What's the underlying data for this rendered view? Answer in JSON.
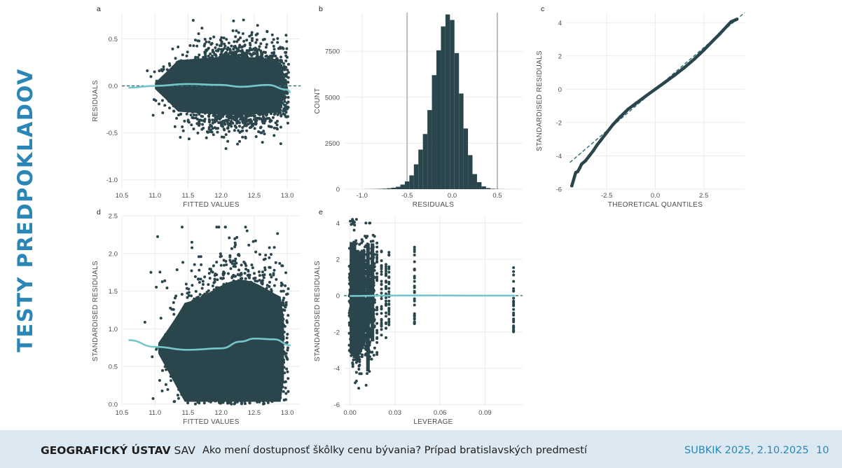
{
  "slide": {
    "title": "TESTY PREDPOKLADOV"
  },
  "footer": {
    "org_bold": "GEOGRAFICKÝ ÚSTAV",
    "org_suffix": "SAV",
    "talk": "Ako mení dostupnosť škôlky cenu bývania? Prípad bratislavských predmestí",
    "event": "SUBKIK 2025, 2.10.2025",
    "page": "10"
  },
  "colors": {
    "points": "#2b454d",
    "smooth": "#76c7cc",
    "bars": "#2b454d",
    "refline": "#2b6c74",
    "grid": "#ebebeb",
    "vline": "#bdbdbd",
    "accent": "#2a86b6"
  },
  "chart_data": [
    {
      "id": "a",
      "type": "scatter",
      "panel_label": "a",
      "xlabel": "FITTED VALUES",
      "ylabel": "RESIDUALS",
      "xlim": [
        10.5,
        13.2
      ],
      "ylim": [
        -1.1,
        0.78
      ],
      "xticks": [
        "10.5",
        "11.0",
        "11.5",
        "12.0",
        "12.5",
        "13.0"
      ],
      "yticks": [
        "-1.0",
        "-0.5",
        "0.0",
        "0.5"
      ],
      "reference_line": {
        "type": "horizontal",
        "y": 0,
        "style": "dashed"
      },
      "smooth": {
        "x": [
          10.6,
          11.0,
          11.5,
          12.0,
          12.3,
          12.7,
          13.0,
          13.05
        ],
        "y": [
          -0.02,
          0.0,
          0.02,
          0.01,
          -0.01,
          0.01,
          -0.04,
          -0.07
        ]
      },
      "point_cloud": {
        "x_range": [
          10.6,
          13.05
        ],
        "center_x": 12.25,
        "approx_y_range": [
          -1.05,
          0.77
        ],
        "n_points_approx": 60000
      }
    },
    {
      "id": "b",
      "type": "bar",
      "panel_label": "b",
      "xlabel": "RESIDUALS",
      "ylabel": "COUNT",
      "xlim": [
        -1.2,
        0.78
      ],
      "ylim": [
        0,
        9600
      ],
      "xticks": [
        "-1.0",
        "-0.5",
        "0.0",
        "0.5"
      ],
      "yticks": [
        "0",
        "2500",
        "5000",
        "7500"
      ],
      "vlines": [
        -0.5,
        0.5
      ],
      "bin_width": 0.05,
      "bins_center": [
        -0.95,
        -0.9,
        -0.85,
        -0.8,
        -0.75,
        -0.7,
        -0.65,
        -0.6,
        -0.55,
        -0.5,
        -0.45,
        -0.4,
        -0.35,
        -0.3,
        -0.25,
        -0.2,
        -0.15,
        -0.1,
        -0.05,
        0.0,
        0.05,
        0.1,
        0.15,
        0.2,
        0.25,
        0.3,
        0.35,
        0.4,
        0.45,
        0.5,
        0.55,
        0.6,
        0.65
      ],
      "values": [
        5,
        8,
        12,
        20,
        30,
        50,
        80,
        130,
        250,
        420,
        750,
        1350,
        2150,
        3000,
        4300,
        6200,
        7550,
        8850,
        9500,
        9200,
        7400,
        5200,
        3300,
        1850,
        820,
        380,
        150,
        60,
        25,
        10,
        5,
        3,
        2
      ]
    },
    {
      "id": "c",
      "type": "scatter",
      "panel_label": "c",
      "xlabel": "THEORETICAL QUANTILES",
      "ylabel": "STANDARDISED RESIDUALS",
      "xlim": [
        -4.6,
        4.6
      ],
      "ylim": [
        -6.0,
        4.6
      ],
      "xticks": [
        "-2.5",
        "0.0",
        "2.5"
      ],
      "yticks": [
        "-6",
        "-4",
        "-2",
        "0",
        "2",
        "4"
      ],
      "reference_line": {
        "type": "diagonal",
        "slope": 1,
        "intercept": 0,
        "style": "dashed"
      },
      "x": [
        -4.3,
        -4.1,
        -4.0,
        -3.9,
        -3.8,
        -3.6,
        -3.4,
        -3.2,
        -3.0,
        -2.8,
        -2.5,
        -2.2,
        -1.8,
        -1.4,
        -1.0,
        -0.5,
        0.0,
        0.5,
        1.0,
        1.5,
        2.0,
        2.5,
        3.0,
        3.3,
        3.5,
        3.7,
        3.9,
        4.0,
        4.1,
        4.2
      ],
      "y": [
        -5.8,
        -5.0,
        -4.95,
        -4.75,
        -4.5,
        -4.3,
        -4.0,
        -3.7,
        -3.35,
        -3.05,
        -2.6,
        -2.15,
        -1.65,
        -1.2,
        -0.85,
        -0.42,
        0.0,
        0.42,
        0.85,
        1.3,
        1.8,
        2.35,
        2.95,
        3.3,
        3.55,
        3.8,
        4.05,
        4.1,
        4.15,
        4.2
      ]
    },
    {
      "id": "d",
      "type": "scatter",
      "panel_label": "d",
      "xlabel": "FITTED VALUES",
      "ylabel": "STANDARDISED RESIDUALS",
      "xlim": [
        10.5,
        13.2
      ],
      "ylim": [
        -0.03,
        2.5
      ],
      "xticks": [
        "10.5",
        "11.0",
        "11.5",
        "12.0",
        "12.5",
        "13.0"
      ],
      "yticks": [
        "0.0",
        "0.5",
        "1.0",
        "1.5",
        "2.0",
        "2.5"
      ],
      "smooth": {
        "x": [
          10.6,
          11.0,
          11.5,
          12.0,
          12.3,
          12.5,
          12.8,
          13.05
        ],
        "y": [
          0.85,
          0.76,
          0.72,
          0.74,
          0.83,
          0.87,
          0.86,
          0.78
        ]
      },
      "point_cloud": {
        "x_range": [
          10.6,
          13.05
        ],
        "center_x": 12.25,
        "approx_y_range": [
          0.0,
          2.4
        ],
        "n_points_approx": 60000
      }
    },
    {
      "id": "e",
      "type": "scatter",
      "panel_label": "e",
      "xlabel": "LEVERAGE",
      "ylabel": "STANDARDISED RESIDUALS",
      "xlim": [
        -0.004,
        0.115
      ],
      "ylim": [
        -6.1,
        4.4
      ],
      "xticks": [
        "0.00",
        "0.03",
        "0.06",
        "0.09"
      ],
      "yticks": [
        "-6",
        "-4",
        "-2",
        "0",
        "2",
        "4"
      ],
      "reference_line": {
        "type": "horizontal",
        "y": 0,
        "style": "dashed"
      },
      "smooth": {
        "x": [
          0.0,
          0.02,
          0.05,
          0.08,
          0.11
        ],
        "y": [
          -0.02,
          0.0,
          0.01,
          0.0,
          0.0
        ]
      },
      "columns": [
        {
          "x": 0.001,
          "y_range": [
            -4.4,
            4.1
          ],
          "dense": true
        },
        {
          "x": 0.003,
          "y_range": [
            -4.8,
            4.2
          ],
          "dense": true
        },
        {
          "x": 0.005,
          "y_range": [
            -5.1,
            3.5
          ],
          "dense": true
        },
        {
          "x": 0.007,
          "y_range": [
            -4.3,
            3.4
          ],
          "dense": true
        },
        {
          "x": 0.009,
          "y_range": [
            -3.9,
            3.3
          ],
          "dense": true
        },
        {
          "x": 0.012,
          "y_range": [
            -5.8,
            4.0
          ],
          "dense": true
        },
        {
          "x": 0.015,
          "y_range": [
            -3.5,
            4.0
          ],
          "dense": true
        },
        {
          "x": 0.018,
          "y_range": [
            -3.3,
            3.0
          ],
          "dense": false
        },
        {
          "x": 0.021,
          "y_range": [
            -2.3,
            2.5
          ],
          "dense": false
        },
        {
          "x": 0.024,
          "y_range": [
            -2.4,
            2.0
          ],
          "dense": false
        },
        {
          "x": 0.026,
          "y_range": [
            -1.8,
            2.5
          ],
          "dense": false
        },
        {
          "x": 0.043,
          "y_range": [
            -1.8,
            2.7
          ],
          "dense": false
        },
        {
          "x": 0.109,
          "y_range": [
            -2.0,
            1.7
          ],
          "dense": false
        }
      ]
    }
  ]
}
